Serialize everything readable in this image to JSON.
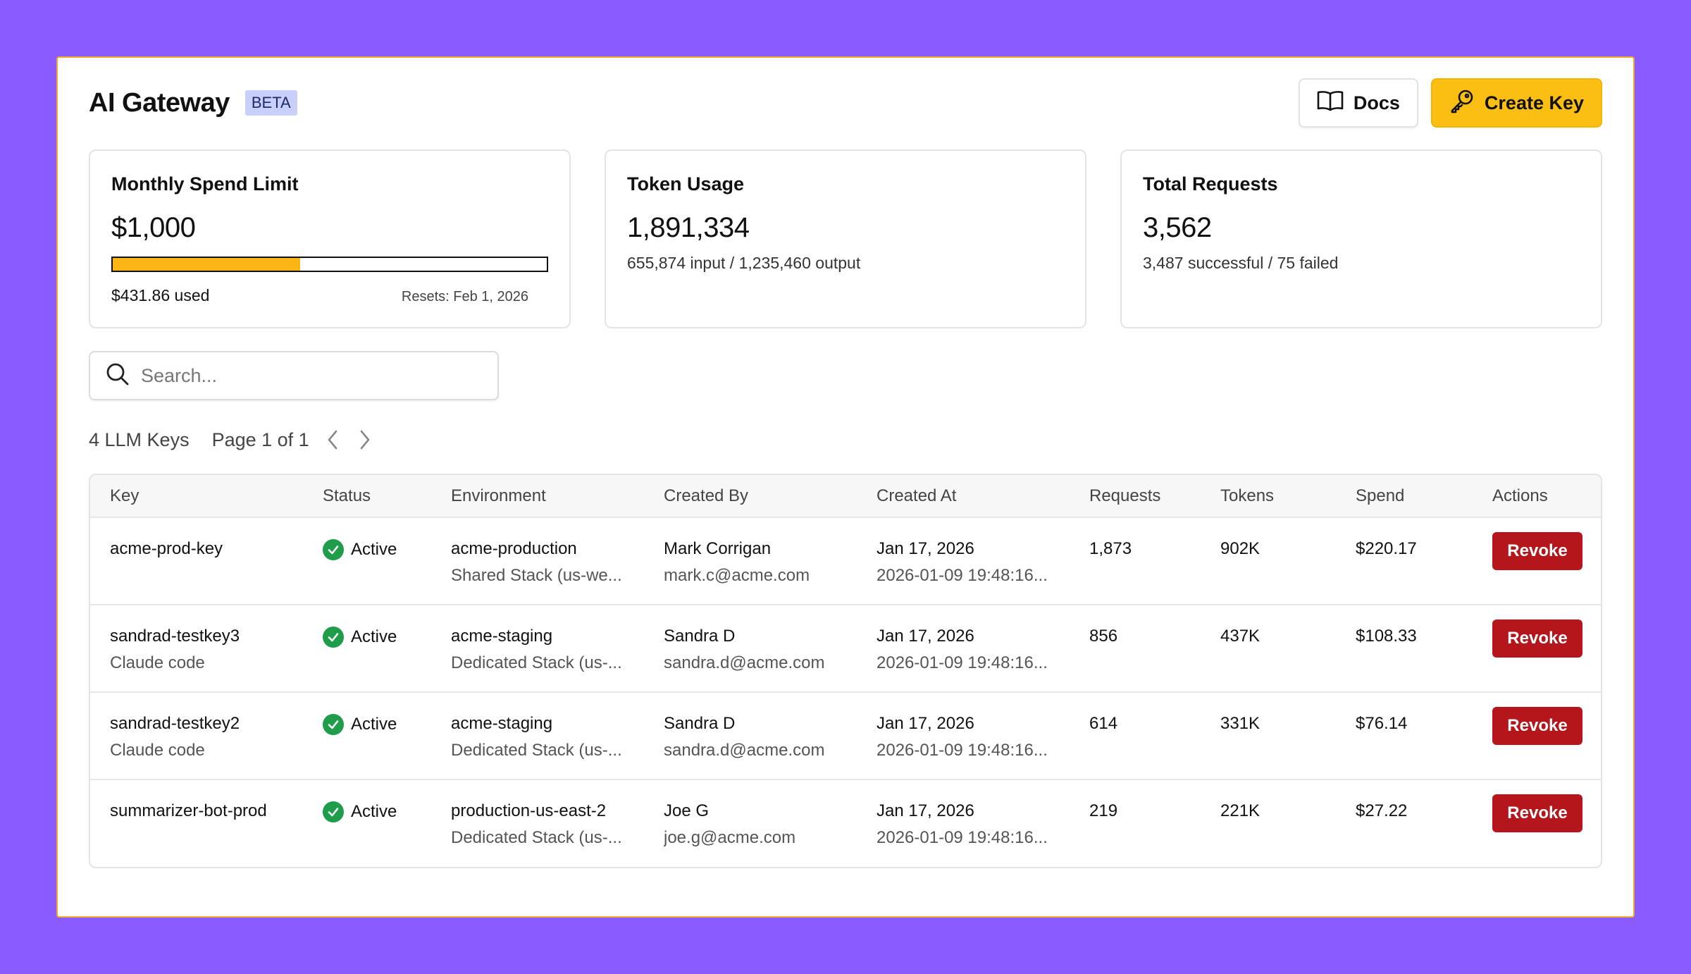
{
  "header": {
    "title": "AI Gateway",
    "badge": "BETA",
    "docs_label": "Docs",
    "create_label": "Create Key"
  },
  "cards": {
    "spend": {
      "title": "Monthly Spend Limit",
      "value": "$1,000",
      "used": "$431.86 used",
      "resets": "Resets: Feb 1, 2026",
      "progress_fraction": 0.4319
    },
    "tokens": {
      "title": "Token Usage",
      "value": "1,891,334",
      "sub": "655,874 input / 1,235,460 output"
    },
    "requests": {
      "title": "Total Requests",
      "value": "3,562",
      "sub": "3,487 successful / 75 failed"
    }
  },
  "search": {
    "placeholder": "Search..."
  },
  "pager": {
    "count": "4 LLM Keys",
    "page": "Page 1 of 1"
  },
  "table": {
    "columns": [
      "Key",
      "Status",
      "Environment",
      "Created By",
      "Created At",
      "Requests",
      "Tokens",
      "Spend",
      "Actions"
    ],
    "action_label": "Revoke",
    "rows": [
      {
        "key": "acme-prod-key",
        "key_sub": "",
        "status": "Active",
        "env": "acme-production",
        "env_sub": "Shared Stack (us-we...",
        "by": "Mark Corrigan",
        "by_sub": "mark.c@acme.com",
        "at": "Jan 17, 2026",
        "at_sub": "2026-01-09 19:48:16...",
        "requests": "1,873",
        "tokens": "902K",
        "spend": "$220.17"
      },
      {
        "key": "sandrad-testkey3",
        "key_sub": "Claude code",
        "status": "Active",
        "env": "acme-staging",
        "env_sub": "Dedicated Stack (us-...",
        "by": "Sandra D",
        "by_sub": "sandra.d@acme.com",
        "at": "Jan 17, 2026",
        "at_sub": "2026-01-09 19:48:16...",
        "requests": "856",
        "tokens": "437K",
        "spend": "$108.33"
      },
      {
        "key": "sandrad-testkey2",
        "key_sub": "Claude code",
        "status": "Active",
        "env": "acme-staging",
        "env_sub": "Dedicated Stack (us-...",
        "by": "Sandra D",
        "by_sub": "sandra.d@acme.com",
        "at": "Jan 17, 2026",
        "at_sub": "2026-01-09 19:48:16...",
        "requests": "614",
        "tokens": "331K",
        "spend": "$76.14"
      },
      {
        "key": "summarizer-bot-prod",
        "key_sub": "",
        "status": "Active",
        "env": "production-us-east-2",
        "env_sub": "Dedicated Stack (us-...",
        "by": "Joe G",
        "by_sub": "joe.g@acme.com",
        "at": "Jan 17, 2026",
        "at_sub": "2026-01-09 19:48:16...",
        "requests": "219",
        "tokens": "221K",
        "spend": "$27.22"
      }
    ]
  }
}
